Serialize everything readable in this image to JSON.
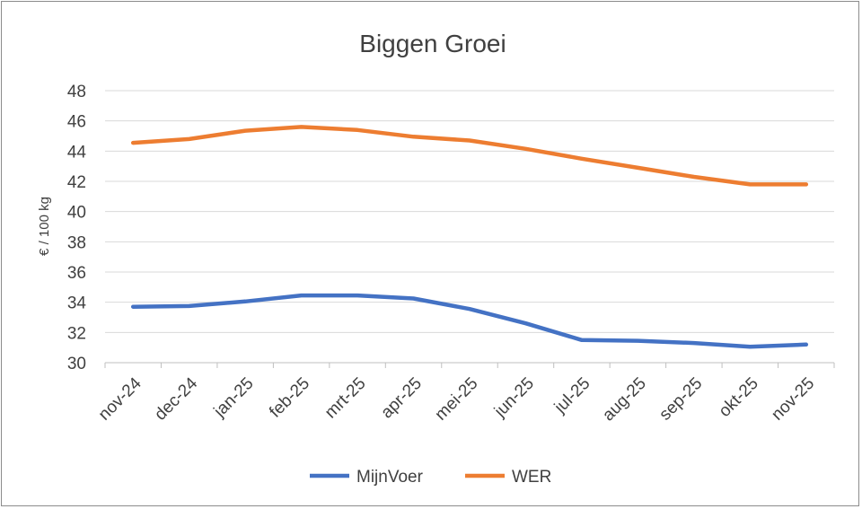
{
  "chart_data": {
    "type": "line",
    "title": "Biggen Groei",
    "xlabel": "",
    "ylabel": "€ / 100 kg",
    "ylim": [
      30,
      48
    ],
    "ytick_step": 2,
    "grid": true,
    "legend_position": "bottom",
    "categories": [
      "nov-24",
      "dec-24",
      "jan-25",
      "feb-25",
      "mrt-25",
      "apr-25",
      "mei-25",
      "jun-25",
      "jul-25",
      "aug-25",
      "sep-25",
      "okt-25",
      "nov-25"
    ],
    "series": [
      {
        "name": "MijnVoer",
        "color": "#4472C4",
        "values": [
          33.7,
          33.75,
          34.05,
          34.45,
          34.45,
          34.25,
          33.55,
          32.6,
          31.5,
          31.45,
          31.3,
          31.05,
          31.2
        ]
      },
      {
        "name": "WER",
        "color": "#ED7D31",
        "values": [
          44.55,
          44.8,
          45.35,
          45.6,
          45.4,
          44.95,
          44.7,
          44.15,
          43.5,
          42.9,
          42.3,
          41.8,
          41.8
        ]
      }
    ]
  }
}
